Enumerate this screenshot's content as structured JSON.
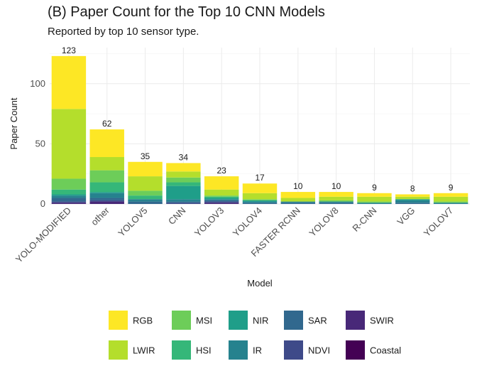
{
  "chart_data": {
    "type": "bar",
    "stacked": true,
    "title": "(B) Paper Count for the Top 10 CNN Models",
    "subtitle": "Reported by top 10 sensor type.",
    "xlabel": "Model",
    "ylabel": "Paper Count",
    "ylim": [
      0,
      130
    ],
    "yticks": [
      0,
      50,
      100
    ],
    "grid": true,
    "legend_position": "bottom",
    "categories": [
      "YOLO-MODIFIED",
      "other",
      "YOLOV5",
      "CNN",
      "YOLOV3",
      "YOLOV4",
      "FASTER RCNN",
      "YOLOV8",
      "R-CNN",
      "VGG",
      "YOLOV7"
    ],
    "totals": [
      123,
      62,
      35,
      34,
      23,
      17,
      10,
      10,
      9,
      8,
      9
    ],
    "series": [
      {
        "name": "Coastal",
        "color": "#440154",
        "values": [
          0,
          0,
          0,
          0,
          0,
          0,
          0,
          0,
          0,
          0,
          0
        ]
      },
      {
        "name": "SWIR",
        "color": "#482878",
        "values": [
          1,
          2,
          0,
          0,
          1,
          0,
          0,
          0,
          0,
          0,
          0
        ]
      },
      {
        "name": "NDVI",
        "color": "#3E4A89",
        "values": [
          1,
          1,
          0,
          1,
          1,
          0,
          0,
          0,
          0,
          0,
          0
        ]
      },
      {
        "name": "SAR",
        "color": "#31688E",
        "values": [
          3,
          2,
          2,
          1,
          1,
          1,
          1,
          1,
          0,
          1,
          0
        ]
      },
      {
        "name": "IR",
        "color": "#26828E",
        "values": [
          2,
          4,
          2,
          2,
          1,
          1,
          1,
          1,
          1,
          2,
          1
        ]
      },
      {
        "name": "NIR",
        "color": "#1F9E89",
        "values": [
          1,
          1,
          0,
          11,
          1,
          1,
          0,
          0,
          0,
          1,
          0
        ]
      },
      {
        "name": "HSI",
        "color": "#35B779",
        "values": [
          4,
          8,
          3,
          3,
          1,
          0,
          0,
          0,
          0,
          0,
          0
        ]
      },
      {
        "name": "MSI",
        "color": "#6DCD59",
        "values": [
          9,
          10,
          4,
          4,
          1,
          1,
          0,
          1,
          1,
          0,
          1
        ]
      },
      {
        "name": "LWIR",
        "color": "#B4DE2C",
        "values": [
          58,
          11,
          12,
          5,
          5,
          5,
          3,
          3,
          4,
          2,
          4
        ]
      },
      {
        "name": "RGB",
        "color": "#FDE725",
        "values": [
          44,
          23,
          12,
          7,
          11,
          8,
          5,
          4,
          3,
          2,
          3
        ]
      }
    ],
    "legend_order": [
      "RGB",
      "MSI",
      "NIR",
      "SAR",
      "SWIR",
      "LWIR",
      "HSI",
      "IR",
      "NDVI",
      "Coastal"
    ]
  }
}
